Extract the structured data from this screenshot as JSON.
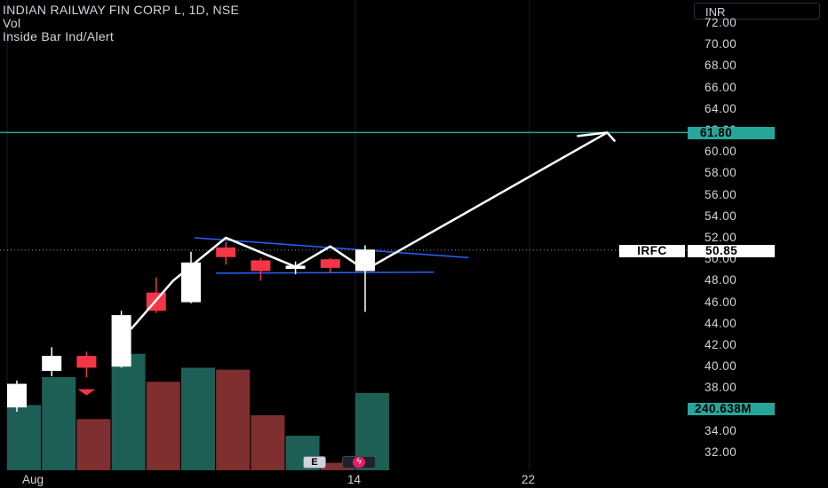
{
  "legend": {
    "title": "INDIAN RAILWAY FIN CORP L, 1D, NSE",
    "line2": "Vol",
    "line3": "Inside Bar Ind/Alert"
  },
  "currency_label": "INR",
  "colors": {
    "up": "#ffffff",
    "down": "#f23645",
    "vol_up": "#1d5f57",
    "vol_down": "#7f2f2f",
    "hline": "#26a69a",
    "trend": "#2962ff",
    "tag_green": "#26a69a"
  },
  "price_tags": {
    "target_value": "61.80",
    "symbol": "IRFC",
    "last_price": "50.85",
    "volume": "240.638M"
  },
  "badges": {
    "earnings": "E",
    "dividend": "ϟ"
  },
  "chart_data": {
    "type": "candlestick",
    "symbol": "INDIAN RAILWAY FIN CORP L",
    "interval": "1D",
    "exchange": "NSE",
    "y_ticks": [
      "72.00",
      "70.00",
      "68.00",
      "66.00",
      "64.00",
      "62.00",
      "60.00",
      "58.00",
      "56.00",
      "54.00",
      "52.00",
      "50.00",
      "48.00",
      "46.00",
      "44.00",
      "42.00",
      "40.00",
      "38.00",
      "34.00",
      "32.00"
    ],
    "ylim": [
      30.9,
      73.1
    ],
    "x_ticks": [
      {
        "label": "Aug",
        "index": 0
      },
      {
        "label": "14",
        "index": 10
      },
      {
        "label": "22",
        "index": 15
      }
    ],
    "candles": [
      {
        "o": 36.2,
        "h": 38.7,
        "l": 35.8,
        "c": 38.4,
        "vol_up": true
      },
      {
        "o": 39.6,
        "h": 41.8,
        "l": 39.1,
        "c": 41.0,
        "vol_up": true
      },
      {
        "o": 41.0,
        "h": 41.4,
        "l": 39.0,
        "c": 39.9,
        "vol_up": false
      },
      {
        "o": 40.0,
        "h": 45.2,
        "l": 39.9,
        "c": 44.8,
        "vol_up": true
      },
      {
        "o": 46.9,
        "h": 48.3,
        "l": 45.0,
        "c": 45.2,
        "vol_up": false
      },
      {
        "o": 46.0,
        "h": 50.7,
        "l": 45.9,
        "c": 49.7,
        "vol_up": true
      },
      {
        "o": 51.1,
        "h": 51.6,
        "l": 49.5,
        "c": 50.2,
        "vol_up": false
      },
      {
        "o": 49.9,
        "h": 50.1,
        "l": 48.0,
        "c": 48.9,
        "vol_up": false
      },
      {
        "o": 49.1,
        "h": 49.8,
        "l": 48.6,
        "c": 49.4,
        "vol_up": true
      },
      {
        "o": 50.0,
        "h": 50.1,
        "l": 48.7,
        "c": 49.2,
        "vol_up": false
      },
      {
        "o": 48.9,
        "h": 51.3,
        "l": 45.1,
        "c": 50.9,
        "vol_up": true
      }
    ],
    "volumes": [
      0.7,
      1.0,
      0.55,
      1.25,
      0.95,
      1.1,
      1.08,
      0.59,
      0.37,
      0.08,
      0.83
    ],
    "horizontal_line": 61.8,
    "last_price": 50.85,
    "volume_last": "240.638M"
  }
}
